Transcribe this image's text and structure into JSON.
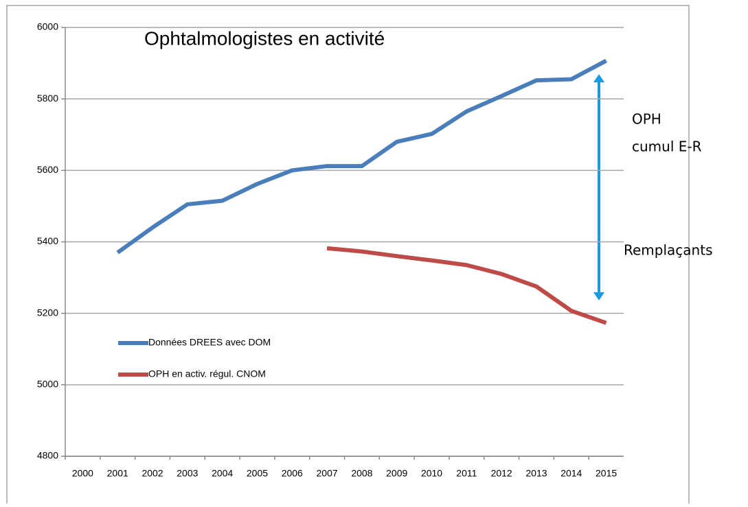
{
  "chart_data": {
    "type": "line",
    "title": "Ophtalmologistes en activité",
    "categories": [
      "2000",
      "2001",
      "2002",
      "2003",
      "2004",
      "2005",
      "2006",
      "2007",
      "2008",
      "2009",
      "2010",
      "2011",
      "2012",
      "2013",
      "2014",
      "2015"
    ],
    "series": [
      {
        "name": "Données DREES avec DOM",
        "color": "#4a7ebb",
        "values": [
          null,
          5370,
          5440,
          5505,
          5515,
          5562,
          5600,
          5612,
          5612,
          5680,
          5702,
          5765,
          5808,
          5852,
          5855,
          5907
        ]
      },
      {
        "name": "OPH en activ. régul. CNOM",
        "color": "#be4b48",
        "values": [
          null,
          null,
          null,
          null,
          null,
          null,
          null,
          5382,
          5373,
          5360,
          5348,
          5335,
          5310,
          5275,
          5207,
          5173
        ]
      }
    ],
    "ylim": [
      4800,
      6000
    ],
    "yticks": [
      4800,
      5000,
      5200,
      5400,
      5600,
      5800,
      6000
    ],
    "grid": true,
    "legend": "bottom-left",
    "annotations": [
      "OPH",
      "cumul E-R",
      "Remplaçants"
    ]
  }
}
